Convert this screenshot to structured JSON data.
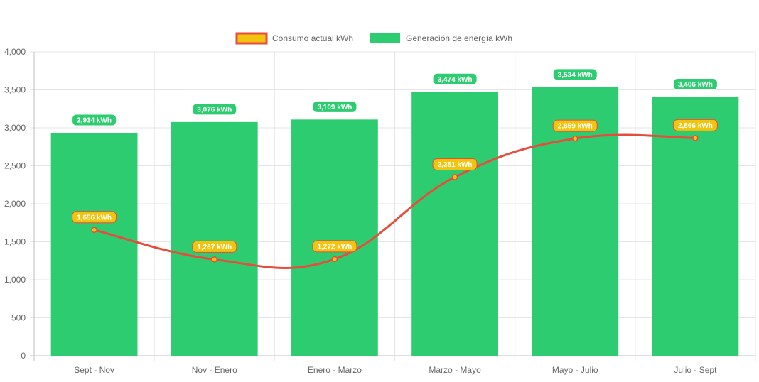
{
  "chart_data": {
    "type": "bar",
    "categories": [
      "Sept - Nov",
      "Nov - Enero",
      "Enero - Marzo",
      "Marzo - Mayo",
      "Mayo - Julio",
      "Julio - Sept"
    ],
    "series": [
      {
        "name": "Consumo actual kWh",
        "type": "line",
        "values": [
          1656,
          1267,
          1272,
          2351,
          2859,
          2866
        ],
        "labels": [
          "1,656 kWh",
          "1,267 kWh",
          "1,272 kWh",
          "2,351 kWh",
          "2,859 kWh",
          "2,866 kWh"
        ],
        "color": "#e74c3c",
        "fill": "#f1c40f"
      },
      {
        "name": "Generación de energía kWh",
        "type": "bar",
        "values": [
          2934,
          3076,
          3109,
          3474,
          3534,
          3406
        ],
        "labels": [
          "2,934 kWh",
          "3,076 kWh",
          "3,109 kWh",
          "3,474 kWh",
          "3,534 kWh",
          "3,406 kWh"
        ],
        "color": "#2ecc71"
      }
    ],
    "y_ticks": [
      "0",
      "500",
      "1,000",
      "1,500",
      "2,000",
      "2,500",
      "3,000",
      "3,500",
      "4,000"
    ],
    "ylim": [
      0,
      4000
    ],
    "grid": true,
    "legend_position": "top"
  }
}
